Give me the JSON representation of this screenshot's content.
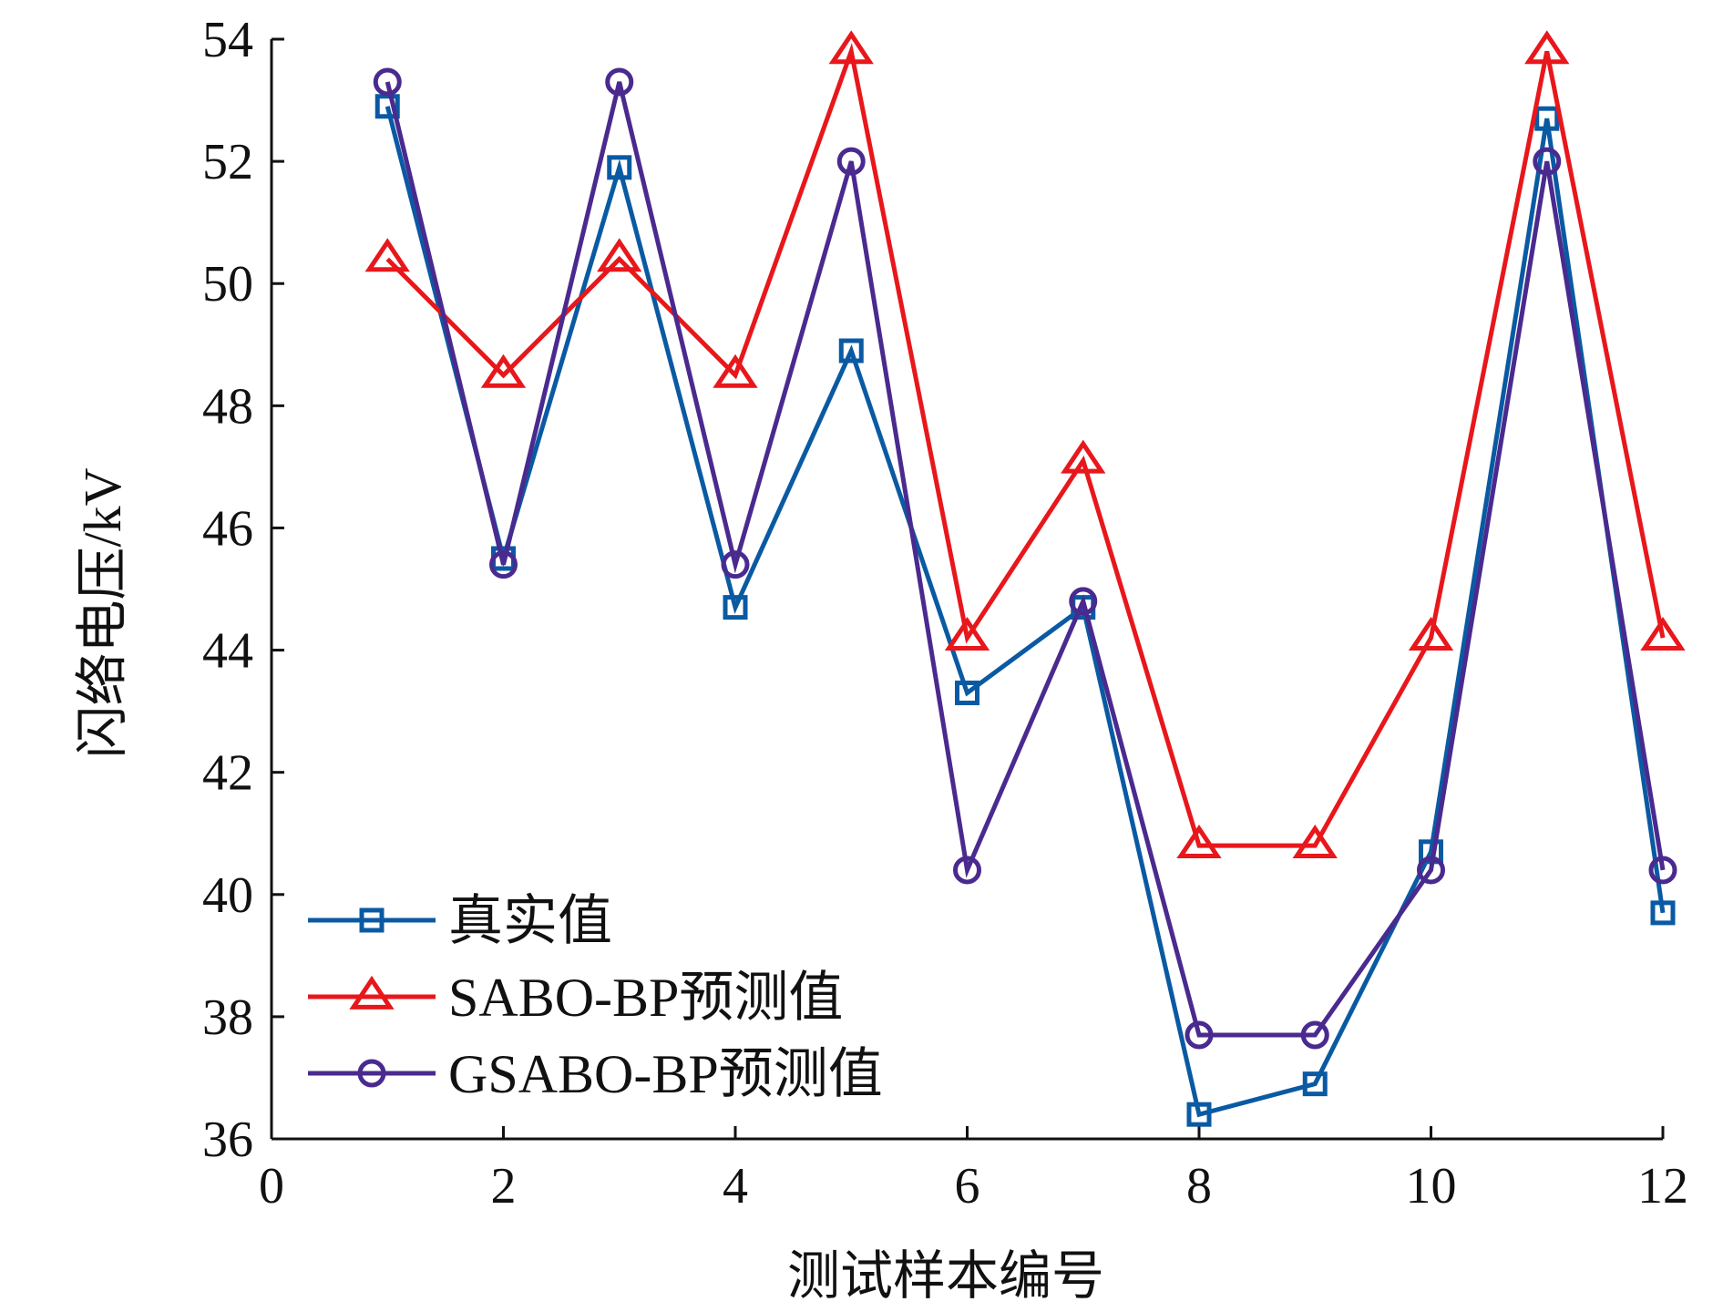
{
  "chart_data": {
    "type": "line",
    "title": "",
    "xlabel": "测试样本编号",
    "ylabel": "闪络电压/kV",
    "xlim": [
      0,
      12
    ],
    "ylim": [
      36,
      54
    ],
    "x_ticks": [
      0,
      2,
      4,
      6,
      8,
      10,
      12
    ],
    "y_ticks": [
      36,
      38,
      40,
      42,
      44,
      46,
      48,
      50,
      52,
      54
    ],
    "x_tick_labels": [
      "0",
      "2",
      "4",
      "6",
      "8",
      "10",
      "12"
    ],
    "y_tick_labels": [
      "36",
      "38",
      "40",
      "42",
      "44",
      "46",
      "48",
      "50",
      "52",
      "54"
    ],
    "grid": false,
    "legend_position": "bottom-left",
    "x": [
      1,
      2,
      3,
      4,
      5,
      6,
      7,
      8,
      9,
      10,
      11,
      12
    ],
    "series": [
      {
        "name": "真实值",
        "color": "#0a5aa3",
        "marker": "square",
        "values": [
          52.9,
          45.5,
          51.9,
          44.7,
          48.9,
          43.3,
          44.7,
          36.4,
          36.9,
          40.7,
          52.7,
          39.7
        ]
      },
      {
        "name": "SABO-BP预测值",
        "color": "#e8171b",
        "marker": "triangle",
        "values": [
          50.4,
          48.5,
          50.4,
          48.5,
          53.8,
          44.2,
          47.1,
          40.8,
          40.8,
          44.2,
          53.8,
          44.2
        ]
      },
      {
        "name": "GSABO-BP预测值",
        "color": "#4a2a8f",
        "marker": "circle",
        "values": [
          53.3,
          45.4,
          53.3,
          45.4,
          52.0,
          40.4,
          44.8,
          37.7,
          37.7,
          40.4,
          52.0,
          40.4
        ]
      }
    ]
  }
}
